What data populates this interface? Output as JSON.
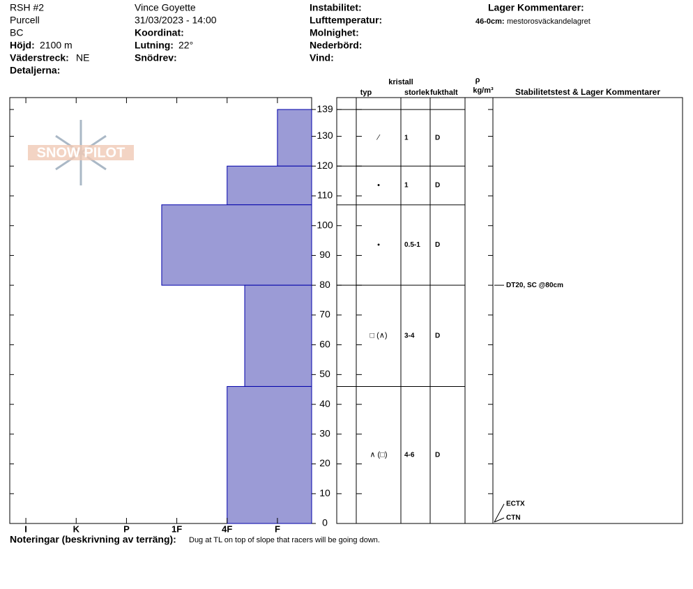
{
  "header": {
    "col1": [
      "RSH #2",
      "Purcell",
      "BC"
    ],
    "elevation": {
      "label": "Höjd:",
      "value": "2100 m"
    },
    "aspect": {
      "label": "Väderstreck:",
      "value": "NE"
    },
    "details": "Detaljerna:",
    "observer": "Vince Goyette",
    "datetime": "31/03/2023 - 14:00",
    "coordinate": "Koordinat:",
    "slope": {
      "label": "Lutning:",
      "value": "22°"
    },
    "drift": "Snödrev:",
    "col3": [
      "Instabilitet:",
      "Lufttemperatur:",
      "Molnighet:",
      "Nederbörd:",
      "Vind:"
    ],
    "layer_comments_title": "Lager Kommentarer:",
    "layer_comment": {
      "label": "46-0cm:",
      "value": "mestorosväckandelagret"
    }
  },
  "logo": "SNOW PILOT",
  "columns": {
    "crystal": "kristall",
    "type": "typ",
    "size": "storlek",
    "moisture": "fukthalt",
    "rho": "ρ",
    "density_unit": "kg/m³",
    "comments": "Stabilitetstest & Lager Kommentarer"
  },
  "footer": {
    "label": "Noteringar (beskrivning av terräng):",
    "text": "Dug at TL on top of slope that racers will be going down."
  },
  "chart_data": {
    "type": "hardness-profile",
    "color": "#9b9bd6",
    "xlim": [
      6.32,
      0.32
    ],
    "xticks": [
      {
        "value": 6,
        "label": "I"
      },
      {
        "value": 5,
        "label": "K"
      },
      {
        "value": 4,
        "label": "P"
      },
      {
        "value": 3,
        "label": "1F"
      },
      {
        "value": 2,
        "label": "4F"
      },
      {
        "value": 1,
        "label": "F"
      }
    ],
    "ylim": [
      0,
      143
    ],
    "yticks": [
      0,
      10,
      20,
      30,
      40,
      50,
      60,
      70,
      80,
      90,
      100,
      110,
      120,
      130,
      139
    ],
    "layers": [
      {
        "top": 139,
        "bottom": 120,
        "hardness": 1,
        "type": "⁄",
        "size": "1",
        "moisture": "D"
      },
      {
        "top": 120,
        "bottom": 107,
        "hardness": 2,
        "type": "•",
        "size": "1",
        "moisture": "D"
      },
      {
        "top": 107,
        "bottom": 80,
        "hardness": 3.3,
        "type": "•",
        "size": "0.5-1",
        "moisture": "D"
      },
      {
        "top": 80,
        "bottom": 46,
        "hardness": 1.65,
        "type": "□ (∧)",
        "size": "3-4",
        "moisture": "D"
      },
      {
        "top": 46,
        "bottom": 0,
        "hardness": 2,
        "type": "∧ (□)",
        "size": "4-6",
        "moisture": "D"
      }
    ],
    "tests": [
      {
        "label": "DT20, SC @80cm",
        "depth": 80
      },
      {
        "label": "CTN",
        "depth": 0
      },
      {
        "label": "ECTX",
        "depth": 0
      }
    ]
  }
}
